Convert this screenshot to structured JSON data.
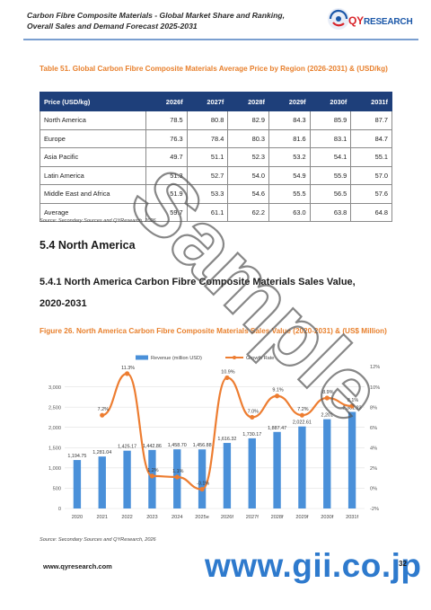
{
  "header": {
    "title_line1": "Carbon Fibre Composite Materials - Global Market Share and Ranking,",
    "title_line2": "Overall Sales and Demand Forecast 2025-2031",
    "logo_q": "QY",
    "logo_rest": "RESEARCH"
  },
  "table51": {
    "caption": "Table 51.   Global Carbon Fibre Composite Materials Average Price by Region (2026-2031) & (USD/kg)",
    "headers": [
      "Price (USD/kg)",
      "2026f",
      "2027f",
      "2028f",
      "2029f",
      "2030f",
      "2031f"
    ],
    "rows": [
      [
        "North America",
        "78.5",
        "80.8",
        "82.9",
        "84.3",
        "85.9",
        "87.7"
      ],
      [
        "Europe",
        "76.3",
        "78.4",
        "80.3",
        "81.6",
        "83.1",
        "84.7"
      ],
      [
        "Asia Pacific",
        "49.7",
        "51.1",
        "52.3",
        "53.2",
        "54.1",
        "55.1"
      ],
      [
        "Latin America",
        "51.3",
        "52.7",
        "54.0",
        "54.9",
        "55.9",
        "57.0"
      ],
      [
        "Middle East and Africa",
        "51.9",
        "53.3",
        "54.6",
        "55.5",
        "56.5",
        "57.6"
      ],
      [
        "Average",
        "59.7",
        "61.1",
        "62.2",
        "63.0",
        "63.8",
        "64.8"
      ]
    ],
    "source": "Source: Secondary Sources and QYResearch, 2026"
  },
  "section": {
    "s54": "5.4   North America",
    "s541_line1": "5.4.1  North America Carbon Fibre Composite Materials Sales Value,",
    "s541_line2": "2020-2031"
  },
  "figure26": {
    "caption": "Figure 26.   North America Carbon Fibre Composite Materials Sales Value (2020-2031) & (US$ Million)",
    "source": "Source: Secondary Sources and QYResearch, 2026"
  },
  "chart_data": {
    "type": "bar",
    "categories": [
      "2020",
      "2021",
      "2022",
      "2023",
      "2024",
      "2025e",
      "2026f",
      "2027f",
      "2028f",
      "2029f",
      "2030f",
      "2031f"
    ],
    "series": [
      {
        "name": "Revenue (million USD)",
        "type": "bar",
        "axis": "left",
        "values": [
          1194.75,
          1281.04,
          1425.17,
          1442.86,
          1458.7,
          1456.88,
          1616.32,
          1730.17,
          1887.47,
          2022.61,
          2201.0,
          2381.23
        ],
        "labels": [
          "1,194.75",
          "1,281.04",
          "1,425.17",
          "1,442.86",
          "1,458.70",
          "1,456.88",
          "1,616.32",
          "1,730.17",
          "1,887.47",
          "2,022.61",
          "2,201",
          "2,381.23"
        ]
      },
      {
        "name": "Growth Rate",
        "type": "line",
        "axis": "right",
        "values": [
          null,
          7.2,
          11.3,
          1.2,
          1.1,
          -0.1,
          10.9,
          7.0,
          9.1,
          7.2,
          8.9,
          8.1
        ],
        "labels": [
          "",
          "7.2%",
          "11.3%",
          "1.2%",
          "1.1%",
          "-0.1%",
          "10.9%",
          "7.0%",
          "9.1%",
          "7.2%",
          "8.9%",
          "8.1%"
        ]
      }
    ],
    "ylim": [
      0,
      3500
    ],
    "yticks": [
      "0",
      "500",
      "1,000",
      "1,500",
      "2,000",
      "2,500",
      "3,000"
    ],
    "y2lim": [
      -2,
      12
    ],
    "y2ticks": [
      "-2%",
      "0%",
      "2%",
      "4%",
      "6%",
      "8%",
      "10%",
      "12%"
    ],
    "legend_position": "top",
    "colors": {
      "bars": "#4a90d9",
      "line": "#ed7d31",
      "markers": "#ed7d31"
    }
  },
  "footer": {
    "url": "www.qyresearch.com",
    "page": "32",
    "gii": "www.gii.co.jp"
  },
  "watermark": "Sample"
}
